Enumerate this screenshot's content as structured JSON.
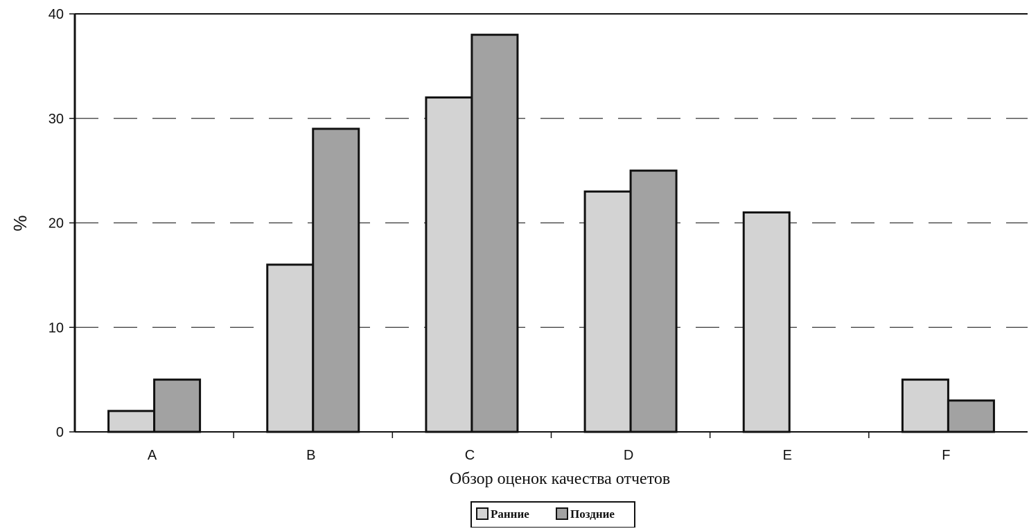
{
  "colors": {
    "series_early": "#d3d3d3",
    "series_late": "#a2a2a2",
    "bar_outline": "#111111",
    "grid": "#333333",
    "axis": "#111111"
  },
  "chart_data": {
    "type": "bar",
    "categories": [
      "A",
      "B",
      "C",
      "D",
      "E",
      "F"
    ],
    "series": [
      {
        "name": "Ранние",
        "values": [
          2,
          16,
          32,
          23,
          21,
          5
        ]
      },
      {
        "name": "Поздние",
        "values": [
          5,
          29,
          38,
          25,
          0,
          3
        ]
      }
    ],
    "title": "",
    "xlabel": "Обзор оценок качества отчетов",
    "ylabel": "%",
    "ylim": [
      0,
      40
    ],
    "yticks": [
      0,
      10,
      20,
      30,
      40
    ],
    "grid": "dashed horizontal",
    "legend": "bottom-center"
  }
}
